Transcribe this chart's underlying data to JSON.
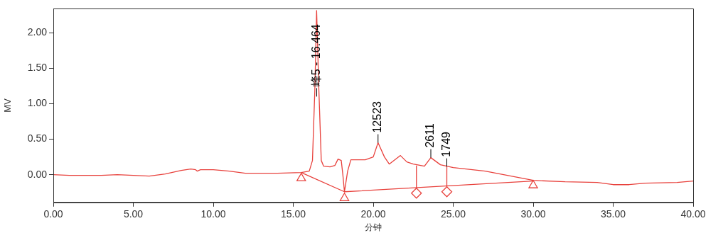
{
  "chart_data": {
    "type": "line",
    "xlabel": "分钟",
    "ylabel": "MV",
    "xlim": [
      0,
      40
    ],
    "ylim": [
      -0.39,
      2.34
    ],
    "xticks": [
      {
        "value": 0,
        "label": "0.00"
      },
      {
        "value": 5,
        "label": "5.00"
      },
      {
        "value": 10,
        "label": "10.00"
      },
      {
        "value": 15,
        "label": "15.00"
      },
      {
        "value": 20,
        "label": "20.00"
      },
      {
        "value": 25,
        "label": "25.00"
      },
      {
        "value": 30,
        "label": "30.00"
      },
      {
        "value": 35,
        "label": "35.00"
      },
      {
        "value": 40,
        "label": "40.00"
      }
    ],
    "yticks": [
      {
        "value": 0,
        "label": "0.00"
      },
      {
        "value": 0.5,
        "label": "0.50"
      },
      {
        "value": 1,
        "label": "1.00"
      },
      {
        "value": 1.5,
        "label": "1.50"
      },
      {
        "value": 2,
        "label": "2.00"
      }
    ],
    "grid": false,
    "series": [
      {
        "type": "line",
        "color": "#e8413c",
        "marker": "none",
        "x": [
          0,
          1,
          3,
          4,
          5,
          6,
          7,
          8,
          8.6,
          8.9,
          9.0,
          9.2,
          10,
          11,
          12,
          14,
          15.5,
          16.0,
          16.2,
          16.35,
          16.46,
          16.6,
          16.75,
          16.9,
          17.3,
          17.6,
          17.8,
          18.0,
          18.1,
          18.2,
          18.4,
          18.6,
          19.5,
          20.0,
          20.3,
          20.7,
          21.0,
          21.7,
          22.1,
          22.5,
          23.2,
          23.6,
          24.2,
          25,
          27,
          30,
          32,
          34,
          35,
          36,
          37,
          39,
          40
        ],
        "values": [
          0.0,
          -0.01,
          -0.01,
          0.0,
          -0.01,
          -0.02,
          0.01,
          0.06,
          0.08,
          0.07,
          0.05,
          0.07,
          0.07,
          0.05,
          0.02,
          0.02,
          0.03,
          0.05,
          0.2,
          1.2,
          2.31,
          1.2,
          0.2,
          0.12,
          0.11,
          0.13,
          0.22,
          0.2,
          0.0,
          -0.24,
          0.05,
          0.21,
          0.21,
          0.25,
          0.45,
          0.25,
          0.15,
          0.27,
          0.18,
          0.15,
          0.12,
          0.24,
          0.14,
          0.1,
          0.05,
          -0.08,
          -0.1,
          -0.11,
          -0.14,
          -0.14,
          -0.12,
          -0.11,
          -0.09
        ]
      },
      {
        "type": "line",
        "color": "#e8413c",
        "marker": "none",
        "x": [
          15.5,
          18.2,
          30
        ],
        "values": [
          0.03,
          -0.24,
          -0.09
        ]
      },
      {
        "type": "scatter",
        "color": "#e8413c",
        "marker": "triangle",
        "x": [
          15.5,
          18.2,
          30
        ],
        "values": [
          -0.05,
          -0.33,
          -0.15
        ]
      }
    ],
    "annotations": [
      {
        "text": "峰5 - 16.464",
        "x": 16.464,
        "y": 1.1
      },
      {
        "text": "12523",
        "x": 20.3,
        "y": 0.45
      },
      {
        "text": "2611",
        "x": 23.6,
        "y": 0.24
      },
      {
        "text": "1749",
        "x": 24.6,
        "y": 0.11
      }
    ]
  }
}
